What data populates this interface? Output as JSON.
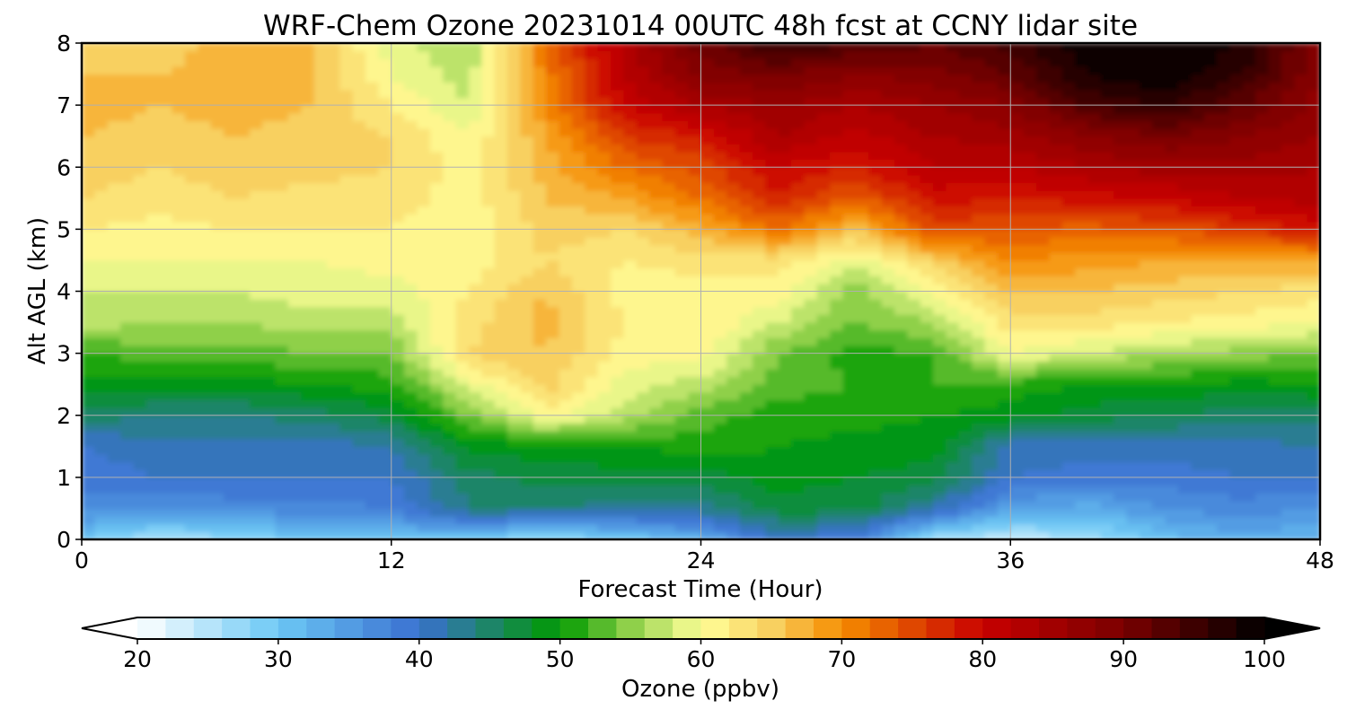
{
  "chart_data": {
    "type": "heatmap",
    "title": "WRF-Chem Ozone  20231014 00UTC 48h fcst at CCNY lidar site",
    "xlabel": "Forecast Time (Hour)",
    "ylabel": "Alt AGL (km)",
    "xlim": [
      0,
      48
    ],
    "ylim": [
      0,
      8
    ],
    "xticks": [
      0,
      12,
      24,
      36,
      48
    ],
    "yticks": [
      0,
      1,
      2,
      3,
      4,
      5,
      6,
      7,
      8
    ],
    "grid": true,
    "time_hours": [
      0,
      3,
      6,
      9,
      12,
      15,
      18,
      21,
      24,
      27,
      30,
      33,
      36,
      39,
      42,
      45,
      48
    ],
    "altitude_km": [
      0,
      0.5,
      1,
      1.5,
      2,
      2.5,
      3,
      3.5,
      4,
      4.5,
      5,
      5.5,
      6,
      6.5,
      7,
      7.5,
      8
    ],
    "ozone_ppbv": [
      [
        30,
        25,
        28,
        30,
        31,
        29,
        27,
        29,
        33,
        40,
        38,
        26,
        24,
        26,
        31,
        33,
        32
      ],
      [
        37,
        36,
        37,
        37,
        38,
        44,
        44,
        43,
        43,
        47,
        47,
        42,
        34,
        33,
        36,
        37,
        36
      ],
      [
        39,
        40,
        40,
        40,
        40,
        45,
        47,
        47,
        47,
        49,
        48,
        47,
        40,
        39,
        39,
        40,
        40
      ],
      [
        40,
        41,
        41,
        41,
        42,
        49,
        49,
        50,
        51,
        50,
        49,
        49,
        41,
        41,
        41,
        41,
        42
      ],
      [
        45,
        44,
        44,
        45,
        47,
        54,
        61,
        57,
        53,
        51,
        51,
        50,
        49,
        47,
        46,
        45,
        45
      ],
      [
        49,
        49,
        49,
        50,
        51,
        59,
        65,
        59,
        57,
        53,
        52,
        52,
        51,
        50,
        50,
        49,
        50
      ],
      [
        52,
        53,
        53,
        54,
        54,
        64,
        66,
        61,
        61,
        54,
        51,
        52,
        60,
        58,
        56,
        55,
        54
      ],
      [
        57,
        56,
        56,
        57,
        57,
        63,
        67,
        62,
        62,
        58,
        54,
        56,
        63,
        63,
        62,
        61,
        60
      ],
      [
        58,
        58,
        58,
        59,
        59,
        62,
        66,
        61,
        61,
        61,
        55,
        60,
        66,
        66,
        65,
        64,
        63
      ],
      [
        60,
        60,
        60,
        60,
        61,
        61,
        64,
        62,
        63,
        63,
        59,
        65,
        70,
        69,
        68,
        68,
        68
      ],
      [
        62,
        61,
        62,
        62,
        62,
        60,
        65,
        64,
        67,
        72,
        66,
        75,
        74,
        73,
        74,
        76,
        79
      ],
      [
        64,
        63,
        64,
        63,
        63,
        61,
        66,
        68,
        72,
        78,
        73,
        79,
        78,
        79,
        80,
        82,
        83
      ],
      [
        65,
        64,
        65,
        65,
        64,
        61,
        67,
        72,
        75,
        80,
        78,
        82,
        82,
        84,
        85,
        85,
        84
      ],
      [
        66,
        65,
        66,
        65,
        64,
        60,
        68,
        76,
        78,
        84,
        81,
        84,
        85,
        88,
        90,
        88,
        86
      ],
      [
        67,
        66,
        67,
        66,
        62,
        58,
        70,
        80,
        84,
        86,
        84,
        86,
        88,
        94,
        96,
        92,
        87
      ],
      [
        66,
        66,
        67,
        66,
        60,
        57,
        71,
        82,
        89,
        90,
        88,
        89,
        92,
        98,
        100,
        96,
        88
      ],
      [
        66,
        65,
        67,
        66,
        59,
        56,
        72,
        83,
        91,
        96,
        94,
        92,
        95,
        100,
        100,
        98,
        88
      ]
    ],
    "colorbar": {
      "label": "Ozone  (ppbv)",
      "min": 20,
      "max": 100,
      "step": 2,
      "ticks": [
        20,
        30,
        40,
        50,
        60,
        70,
        80,
        90,
        100
      ],
      "extend": "both",
      "color_stops": [
        {
          "value": 20,
          "color": "#ffffff"
        },
        {
          "value": 30,
          "color": "#6cc8f5"
        },
        {
          "value": 40,
          "color": "#3a70d0"
        },
        {
          "value": 50,
          "color": "#009a00"
        },
        {
          "value": 55,
          "color": "#8fd04a"
        },
        {
          "value": 60,
          "color": "#ffff99"
        },
        {
          "value": 65,
          "color": "#f8d060"
        },
        {
          "value": 70,
          "color": "#f58d00"
        },
        {
          "value": 80,
          "color": "#c80000"
        },
        {
          "value": 90,
          "color": "#7a0000"
        },
        {
          "value": 100,
          "color": "#000000"
        }
      ]
    }
  }
}
